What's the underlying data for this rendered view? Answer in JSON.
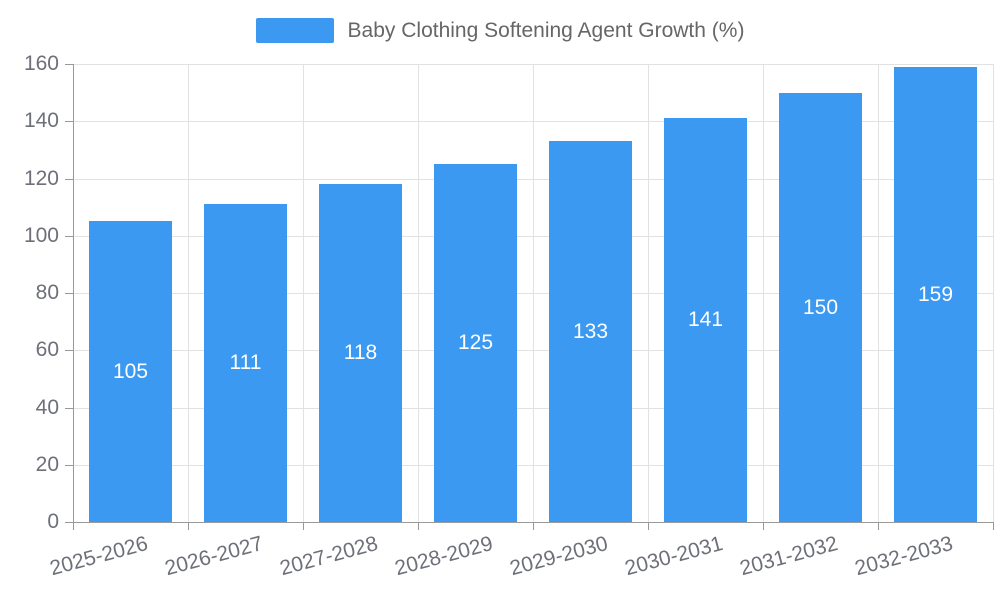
{
  "chart_data": {
    "type": "bar",
    "title": "Baby Clothing Softening Agent Growth (%)",
    "categories": [
      "2025-2026",
      "2026-2027",
      "2027-2028",
      "2028-2029",
      "2029-2030",
      "2030-2031",
      "2031-2032",
      "2032-2033"
    ],
    "values": [
      105,
      111,
      118,
      125,
      133,
      141,
      150,
      159
    ],
    "xlabel": "",
    "ylabel": "",
    "ylim": [
      0,
      160
    ],
    "ytick_step": 20,
    "y_tick_labels": [
      "0",
      "20",
      "40",
      "60",
      "80",
      "100",
      "120",
      "140",
      "160"
    ],
    "grid": "on",
    "legend_position": "top-center",
    "bar_color": "#3b99f1",
    "bar_label_color": "#ffffff",
    "axis_text_color": "#6e7079",
    "legend_text_color": "#666666",
    "grid_color": "#e2e2e2",
    "axis_line_color": "#999999"
  }
}
